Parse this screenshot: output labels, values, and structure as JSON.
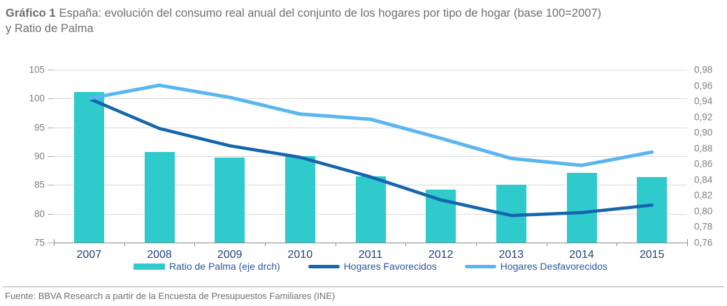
{
  "title": {
    "line1_bold": "Gráfico 1",
    "line1_rest": "España: evolución del consumo real anual del conjunto de los hogares por tipo de hogar (base 100=2007)",
    "line2": "y Ratio de Palma"
  },
  "footer": {
    "source": "Fuente: BBVA Research a partir de la Encuesta de Presupuestos Familiares (INE)"
  },
  "colors": {
    "bar_teal": "#2ecacc",
    "line_dark_blue": "#1565ad",
    "line_light_blue": "#59b6f0",
    "gridline": "#dadada",
    "axis_line": "#8a8a8a",
    "axis_text": "#7d7e81",
    "year_text": "#24407e",
    "legend_text": "#2b55a2"
  },
  "chart_data": {
    "type": "bar+line combo",
    "categories": [
      "2007",
      "2008",
      "2009",
      "2010",
      "2011",
      "2012",
      "2013",
      "2014",
      "2015"
    ],
    "series": [
      {
        "name": "Ratio de Palma (eje drch)",
        "type": "bar",
        "axis": "right",
        "values": [
          0.952,
          0.875,
          0.868,
          0.87,
          0.844,
          0.827,
          0.834,
          0.849,
          0.843
        ]
      },
      {
        "name": "Hogares Favorecidos",
        "type": "line",
        "axis": "left",
        "values": [
          100,
          94.8,
          91.8,
          89.8,
          86.4,
          82.4,
          79.7,
          80.2,
          81.5
        ]
      },
      {
        "name": "Hogares Desfavorecidos",
        "type": "line",
        "axis": "left",
        "values": [
          100,
          102.3,
          100.2,
          97.3,
          96.4,
          93.1,
          89.6,
          88.4,
          90.7
        ]
      }
    ],
    "left_axis": {
      "min": 75,
      "max": 105,
      "ticks": [
        105,
        100,
        95,
        90,
        85,
        80,
        75
      ]
    },
    "right_axis": {
      "min": 0.76,
      "max": 0.98,
      "labels": [
        "0,98",
        "0,96",
        "0,94",
        "0,92",
        "0,90",
        "0,88",
        "0,86",
        "0,84",
        "0,82",
        "0,80",
        "0,78",
        "0,76"
      ]
    },
    "grid": true,
    "legend_position": "bottom"
  }
}
